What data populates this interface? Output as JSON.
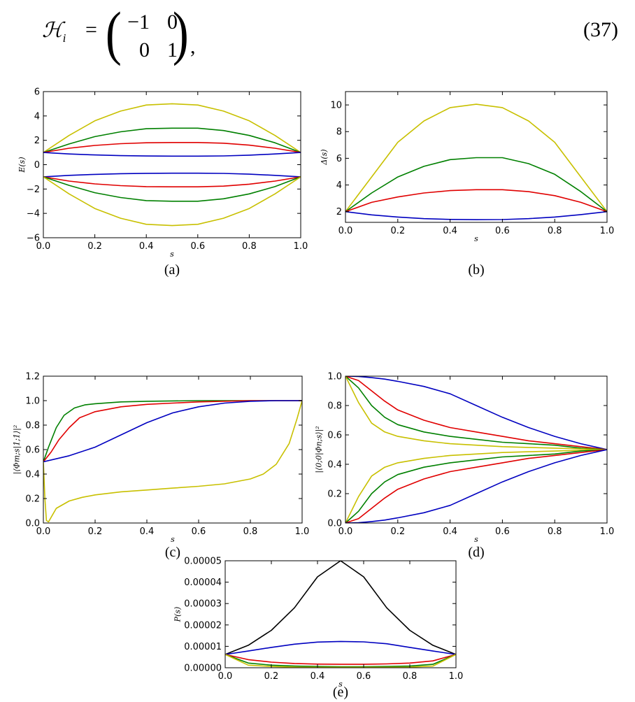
{
  "equation": {
    "lhs_symbol": "ℋ",
    "lhs_subscript": "i",
    "equals": "=",
    "matrix": [
      [
        "−1",
        "0"
      ],
      [
        "0",
        "1"
      ]
    ],
    "comma": ",",
    "number": "(37)"
  },
  "chart_data": [
    {
      "panel": "a",
      "type": "line",
      "caption": "(a)",
      "xlabel": "s",
      "ylabel": "E(s)",
      "xlim": [
        0,
        1
      ],
      "ylim": [
        -6,
        6
      ],
      "xticks": [
        "0.0",
        "0.2",
        "0.4",
        "0.6",
        "0.8",
        "1.0"
      ],
      "yticks": [
        "−6",
        "−4",
        "−2",
        "0",
        "2",
        "4",
        "6"
      ],
      "x": [
        0,
        0.1,
        0.2,
        0.3,
        0.4,
        0.5,
        0.6,
        0.7,
        0.8,
        0.9,
        1.0
      ],
      "series": [
        {
          "color": "#c8c000",
          "values": [
            1,
            2.4,
            3.6,
            4.4,
            4.9,
            5.0,
            4.9,
            4.4,
            3.6,
            2.4,
            1
          ]
        },
        {
          "color": "#008000",
          "values": [
            1,
            1.7,
            2.3,
            2.7,
            2.95,
            3.0,
            3.0,
            2.8,
            2.4,
            1.8,
            1
          ]
        },
        {
          "color": "#e00000",
          "values": [
            1,
            1.35,
            1.58,
            1.72,
            1.8,
            1.82,
            1.82,
            1.76,
            1.6,
            1.35,
            1
          ]
        },
        {
          "color": "#0000c0",
          "values": [
            1,
            0.88,
            0.8,
            0.74,
            0.71,
            0.7,
            0.7,
            0.72,
            0.78,
            0.88,
            1
          ]
        },
        {
          "color": "#0000c0",
          "values": [
            -1,
            -0.88,
            -0.8,
            -0.74,
            -0.71,
            -0.7,
            -0.7,
            -0.72,
            -0.78,
            -0.88,
            -1
          ]
        },
        {
          "color": "#e00000",
          "values": [
            -1,
            -1.35,
            -1.58,
            -1.72,
            -1.8,
            -1.82,
            -1.82,
            -1.76,
            -1.6,
            -1.35,
            -1
          ]
        },
        {
          "color": "#008000",
          "values": [
            -1,
            -1.7,
            -2.3,
            -2.7,
            -2.95,
            -3.0,
            -3.0,
            -2.8,
            -2.4,
            -1.8,
            -1
          ]
        },
        {
          "color": "#c8c000",
          "values": [
            -1,
            -2.4,
            -3.6,
            -4.4,
            -4.9,
            -5.0,
            -4.9,
            -4.4,
            -3.6,
            -2.4,
            -1
          ]
        }
      ]
    },
    {
      "panel": "b",
      "type": "line",
      "caption": "(b)",
      "xlabel": "s",
      "ylabel": "Δ(s)",
      "xlim": [
        0,
        1
      ],
      "ylim": [
        1.2,
        11
      ],
      "xticks": [
        "0.0",
        "0.2",
        "0.4",
        "0.6",
        "0.8",
        "1.0"
      ],
      "yticks": [
        "2",
        "4",
        "6",
        "8",
        "10"
      ],
      "x": [
        0,
        0.1,
        0.2,
        0.3,
        0.4,
        0.5,
        0.6,
        0.7,
        0.8,
        0.9,
        1.0
      ],
      "series": [
        {
          "color": "#c8c000",
          "values": [
            2,
            4.6,
            7.2,
            8.8,
            9.8,
            10.05,
            9.8,
            8.8,
            7.2,
            4.6,
            2
          ]
        },
        {
          "color": "#008000",
          "values": [
            2,
            3.4,
            4.6,
            5.4,
            5.9,
            6.05,
            6.05,
            5.6,
            4.8,
            3.5,
            2
          ]
        },
        {
          "color": "#e00000",
          "values": [
            2,
            2.7,
            3.1,
            3.4,
            3.58,
            3.65,
            3.65,
            3.5,
            3.2,
            2.7,
            2
          ]
        },
        {
          "color": "#0000c0",
          "values": [
            2,
            1.76,
            1.6,
            1.48,
            1.42,
            1.4,
            1.41,
            1.48,
            1.6,
            1.78,
            2
          ]
        }
      ]
    },
    {
      "panel": "c",
      "type": "line",
      "caption": "(c)",
      "xlabel": "s",
      "ylabel": "|⟨Φm;s|1;1⟩|²",
      "xlim": [
        0,
        1
      ],
      "ylim": [
        0,
        1.2
      ],
      "xticks": [
        "0.0",
        "0.2",
        "0.4",
        "0.6",
        "0.8",
        "1.0"
      ],
      "yticks": [
        "0.0",
        "0.2",
        "0.4",
        "0.6",
        "0.8",
        "1.0",
        "1.2"
      ],
      "series": [
        {
          "color": "#008000",
          "x": [
            0,
            0.02,
            0.05,
            0.08,
            0.12,
            0.16,
            0.2,
            0.3,
            0.4,
            0.6,
            0.8,
            1.0
          ],
          "values": [
            0.5,
            0.62,
            0.78,
            0.88,
            0.94,
            0.965,
            0.975,
            0.99,
            0.995,
            1.0,
            1.0,
            1.0
          ]
        },
        {
          "color": "#e00000",
          "x": [
            0,
            0.03,
            0.06,
            0.1,
            0.14,
            0.2,
            0.3,
            0.4,
            0.5,
            0.6,
            0.8,
            1.0
          ],
          "values": [
            0.5,
            0.58,
            0.68,
            0.78,
            0.86,
            0.91,
            0.95,
            0.97,
            0.98,
            0.99,
            1.0,
            1.0
          ]
        },
        {
          "color": "#0000c0",
          "x": [
            0,
            0.1,
            0.2,
            0.3,
            0.4,
            0.5,
            0.6,
            0.7,
            0.8,
            0.9,
            1.0
          ],
          "values": [
            0.5,
            0.55,
            0.62,
            0.72,
            0.82,
            0.9,
            0.95,
            0.98,
            0.995,
            1.0,
            1.0
          ]
        },
        {
          "color": "#c8c000",
          "x": [
            0,
            0.006,
            0.012,
            0.02,
            0.05,
            0.1,
            0.15,
            0.2,
            0.3,
            0.4,
            0.5,
            0.6,
            0.7,
            0.8,
            0.85,
            0.9,
            0.95,
            0.98,
            1.0
          ],
          "values": [
            0.5,
            0.2,
            0.02,
            0.01,
            0.12,
            0.18,
            0.21,
            0.23,
            0.255,
            0.27,
            0.285,
            0.3,
            0.32,
            0.36,
            0.4,
            0.48,
            0.65,
            0.85,
            1.0
          ]
        }
      ]
    },
    {
      "panel": "d",
      "type": "line",
      "caption": "(d)",
      "xlabel": "s",
      "ylabel": "|⟨0;0|Φn;s⟩|²",
      "xlim": [
        0,
        1
      ],
      "ylim": [
        0,
        1
      ],
      "xticks": [
        "0.0",
        "0.2",
        "0.4",
        "0.6",
        "0.8",
        "1.0"
      ],
      "yticks": [
        "0.0",
        "0.2",
        "0.4",
        "0.6",
        "0.8",
        "1.0"
      ],
      "x": [
        0,
        0.05,
        0.1,
        0.15,
        0.2,
        0.3,
        0.4,
        0.5,
        0.6,
        0.7,
        0.8,
        0.9,
        1.0
      ],
      "series": [
        {
          "color": "#0000c0",
          "values": [
            1.0,
            0.998,
            0.99,
            0.98,
            0.965,
            0.93,
            0.88,
            0.8,
            0.72,
            0.65,
            0.59,
            0.54,
            0.5
          ]
        },
        {
          "color": "#e00000",
          "values": [
            1.0,
            0.97,
            0.9,
            0.83,
            0.77,
            0.7,
            0.65,
            0.62,
            0.59,
            0.56,
            0.54,
            0.52,
            0.5
          ]
        },
        {
          "color": "#008000",
          "values": [
            1.0,
            0.92,
            0.8,
            0.72,
            0.67,
            0.62,
            0.59,
            0.57,
            0.55,
            0.54,
            0.53,
            0.51,
            0.5
          ]
        },
        {
          "color": "#c8c000",
          "values": [
            1.0,
            0.82,
            0.68,
            0.62,
            0.59,
            0.56,
            0.54,
            0.53,
            0.52,
            0.515,
            0.51,
            0.505,
            0.5
          ]
        },
        {
          "color": "#c8c000",
          "values": [
            0.0,
            0.18,
            0.32,
            0.38,
            0.41,
            0.44,
            0.46,
            0.47,
            0.48,
            0.485,
            0.49,
            0.495,
            0.5
          ]
        },
        {
          "color": "#008000",
          "values": [
            0.0,
            0.08,
            0.2,
            0.28,
            0.33,
            0.38,
            0.41,
            0.43,
            0.45,
            0.46,
            0.47,
            0.49,
            0.5
          ]
        },
        {
          "color": "#e00000",
          "values": [
            0.0,
            0.03,
            0.1,
            0.17,
            0.23,
            0.3,
            0.35,
            0.38,
            0.41,
            0.44,
            0.46,
            0.48,
            0.5
          ]
        },
        {
          "color": "#0000c0",
          "values": [
            0.0,
            0.002,
            0.01,
            0.02,
            0.035,
            0.07,
            0.12,
            0.2,
            0.28,
            0.35,
            0.41,
            0.46,
            0.5
          ]
        }
      ]
    },
    {
      "panel": "e",
      "type": "line",
      "caption": "(e)",
      "xlabel": "s",
      "ylabel": "P(s)",
      "xlim": [
        0,
        1
      ],
      "ylim": [
        0,
        5e-05
      ],
      "xticks": [
        "0.0",
        "0.2",
        "0.4",
        "0.6",
        "0.8",
        "1.0"
      ],
      "yticks": [
        "0.00000",
        "0.00001",
        "0.00002",
        "0.00003",
        "0.00004",
        "0.00005"
      ],
      "x": [
        0,
        0.1,
        0.2,
        0.3,
        0.4,
        0.5,
        0.6,
        0.7,
        0.8,
        0.9,
        1.0
      ],
      "series": [
        {
          "color": "#000000",
          "values": [
            6.2e-06,
            1.05e-05,
            1.75e-05,
            2.8e-05,
            4.25e-05,
            5e-05,
            4.25e-05,
            2.8e-05,
            1.75e-05,
            1.05e-05,
            6.2e-06
          ]
        },
        {
          "color": "#0000c0",
          "values": [
            6.2e-06,
            7.8e-06,
            9.5e-06,
            1.1e-05,
            1.2e-05,
            1.23e-05,
            1.21e-05,
            1.12e-05,
            9.5e-06,
            7.8e-06,
            6.2e-06
          ]
        },
        {
          "color": "#e00000",
          "values": [
            6.2e-06,
            3.8e-06,
            2.6e-06,
            2e-06,
            1.7e-06,
            1.6e-06,
            1.6e-06,
            1.8e-06,
            2.2e-06,
            3.2e-06,
            6.2e-06
          ]
        },
        {
          "color": "#008000",
          "values": [
            6.2e-06,
            2.2e-06,
            1.2e-06,
            8e-07,
            6e-07,
            5e-07,
            5e-07,
            6e-07,
            8e-07,
            1.6e-06,
            6.2e-06
          ]
        },
        {
          "color": "#c8c000",
          "values": [
            6.2e-06,
            1.2e-06,
            6e-07,
            3e-07,
            2e-07,
            2e-07,
            2e-07,
            2e-07,
            3e-07,
            8e-07,
            6.2e-06
          ]
        }
      ]
    }
  ]
}
